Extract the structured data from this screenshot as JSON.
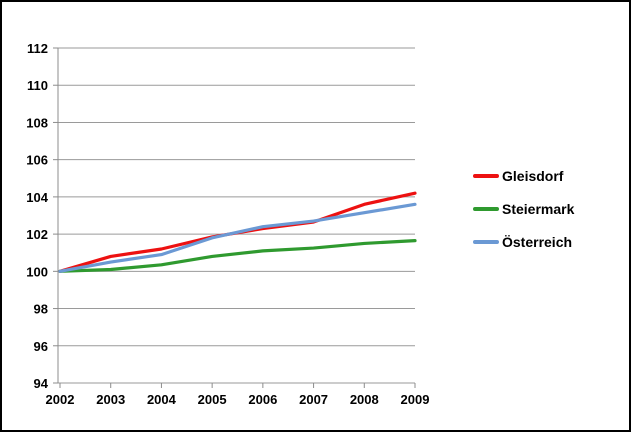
{
  "window": {
    "background": "#ffffff",
    "border_color": "#000000"
  },
  "chart_data": {
    "type": "line",
    "title": "",
    "xlabel": "",
    "ylabel": "",
    "x": [
      2002,
      2003,
      2004,
      2005,
      2006,
      2007,
      2008,
      2009
    ],
    "series": [
      {
        "name": "Gleisdorf",
        "color": "#ed1111",
        "values": [
          100,
          100.8,
          101.2,
          101.85,
          102.3,
          102.65,
          103.6,
          104.2
        ]
      },
      {
        "name": "Steiermark",
        "color": "#2f9a2f",
        "values": [
          100,
          100.1,
          100.35,
          100.8,
          101.1,
          101.25,
          101.5,
          101.65
        ]
      },
      {
        "name": "Österreich",
        "color": "#6b99d4",
        "values": [
          100,
          100.5,
          100.9,
          101.8,
          102.4,
          102.7,
          103.15,
          103.6
        ]
      }
    ],
    "ylim": [
      94,
      112
    ],
    "y_tick_step": 2,
    "grid": true,
    "legend_position": "right",
    "grid_color": "#9a9a9a",
    "axis_color": "#8c8c8c",
    "text_color": "#000000"
  }
}
